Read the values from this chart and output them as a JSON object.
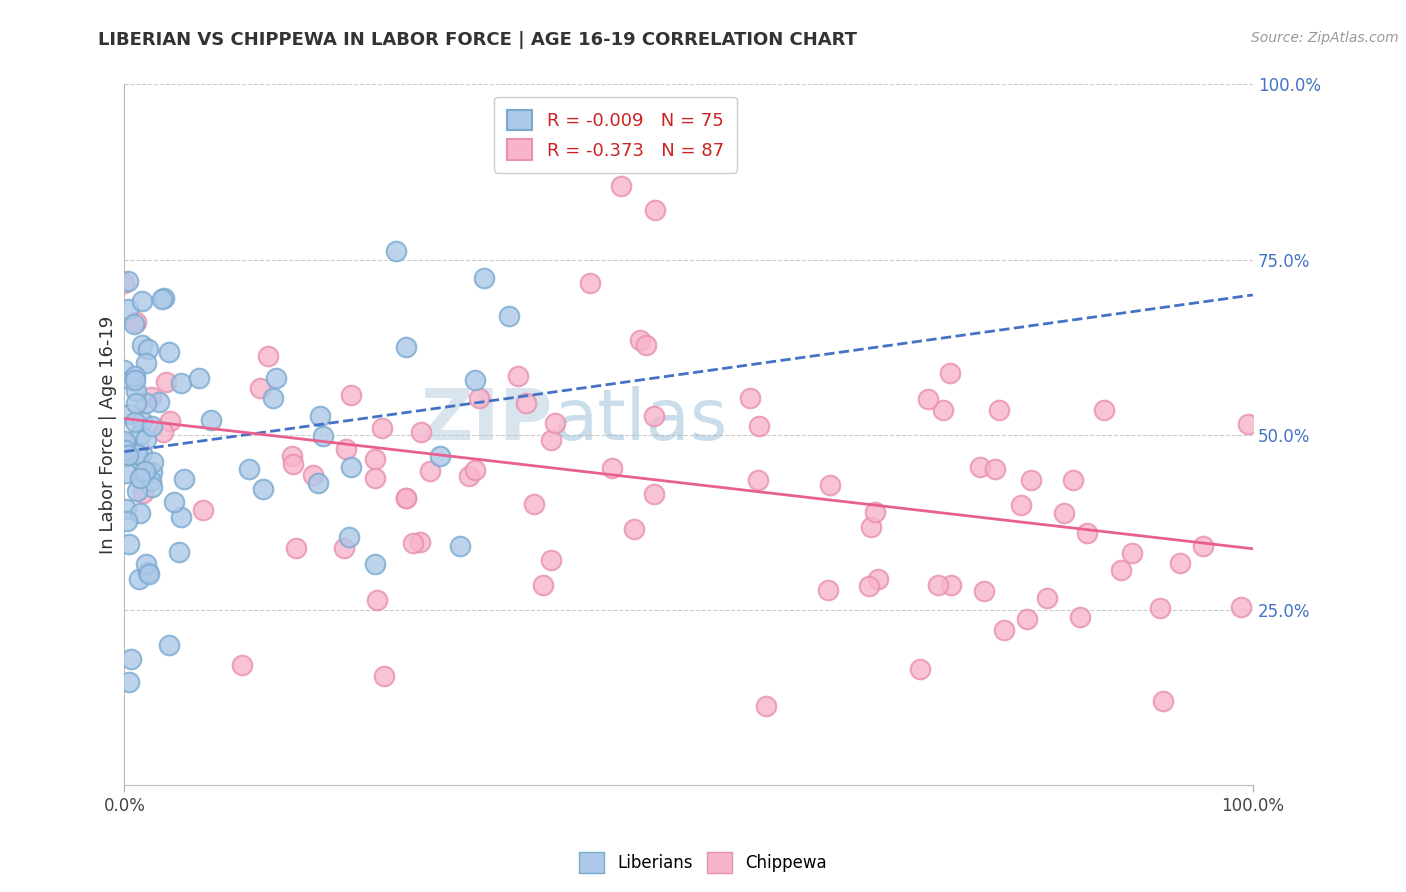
{
  "title": "LIBERIAN VS CHIPPEWA IN LABOR FORCE | AGE 16-19 CORRELATION CHART",
  "source_text": "Source: ZipAtlas.com",
  "ylabel": "In Labor Force | Age 16-19",
  "xlim": [
    0.0,
    1.0
  ],
  "ylim": [
    0.0,
    1.0
  ],
  "legend_r_liberian": "-0.009",
  "legend_n_liberian": "75",
  "legend_r_chippewa": "-0.373",
  "legend_n_chippewa": "87",
  "liberian_color": "#adc8e8",
  "liberian_edge": "#7aaad0",
  "chippewa_color": "#f8b4cc",
  "chippewa_edge": "#e890b0",
  "liberian_line_color": "#4472c4",
  "chippewa_line_color": "#e86090",
  "grid_color": "#cccccc",
  "watermark_zip_color": "#c0d0e0",
  "watermark_atlas_color": "#90b8d8"
}
